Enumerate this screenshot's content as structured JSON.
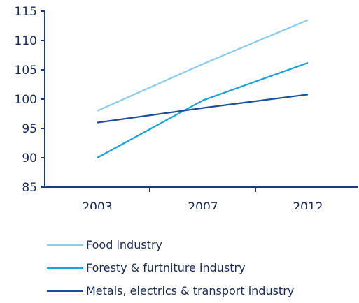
{
  "chart_data": {
    "type": "line",
    "x": [
      "2003",
      "2007",
      "2012"
    ],
    "ylim": [
      85,
      115
    ],
    "yticks": [
      85,
      90,
      95,
      100,
      105,
      110,
      115
    ],
    "grid": false,
    "legend_position": "bottom",
    "series": [
      {
        "name": "Food industry",
        "values": [
          98,
          106,
          113.5
        ],
        "color": "#8ccbec"
      },
      {
        "name": "Foresty & furtniture industry",
        "values": [
          90,
          99.8,
          106.2
        ],
        "color": "#1ba0da"
      },
      {
        "name": "Metals, electrics & transport industry",
        "values": [
          96,
          98.5,
          100.8
        ],
        "color": "#1a4f9c"
      }
    ]
  },
  "axis_color": "#1a3a7a"
}
